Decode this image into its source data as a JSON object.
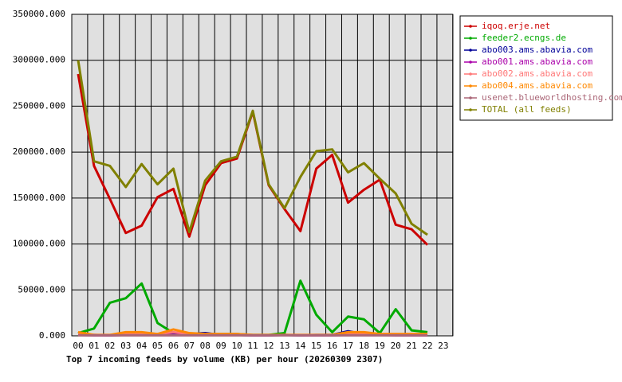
{
  "chart_data": {
    "type": "line",
    "title": "Top 7 incoming feeds by volume (KB) per hour (20260309 2307)",
    "categories": [
      "00",
      "01",
      "02",
      "03",
      "04",
      "05",
      "06",
      "07",
      "08",
      "09",
      "10",
      "11",
      "12",
      "13",
      "14",
      "15",
      "16",
      "17",
      "18",
      "19",
      "20",
      "21",
      "22",
      "23"
    ],
    "ylim": [
      0,
      350000
    ],
    "yticks": [
      {
        "value": 0,
        "label": "0.000"
      },
      {
        "value": 50000,
        "label": "50000.000"
      },
      {
        "value": 100000,
        "label": "100000.000"
      },
      {
        "value": 150000,
        "label": "150000.000"
      },
      {
        "value": 200000,
        "label": "200000.000"
      },
      {
        "value": 250000,
        "label": "250000.000"
      },
      {
        "value": 300000,
        "label": "300000.000"
      },
      {
        "value": 350000,
        "label": "350000.000"
      }
    ],
    "grid": true,
    "legend": "right",
    "series": [
      {
        "name": "iqoq.erje.net",
        "color": "#cc0000",
        "values": [
          285000,
          185000,
          149000,
          112000,
          120000,
          151000,
          160000,
          108000,
          164000,
          188000,
          193000,
          244000,
          164000,
          138000,
          114000,
          182000,
          197000,
          145000,
          159000,
          170000,
          121000,
          116000,
          99000,
          null
        ]
      },
      {
        "name": "feeder2.ecngs.de",
        "color": "#00aa00",
        "values": [
          3000,
          8000,
          36000,
          41000,
          57000,
          14000,
          3000,
          2000,
          2000,
          2000,
          2000,
          1000,
          1000,
          3000,
          60000,
          23000,
          4000,
          21000,
          18000,
          3000,
          29000,
          6000,
          4000,
          null
        ]
      },
      {
        "name": "abo003.ams.abavia.com",
        "color": "#000099",
        "values": [
          1000,
          1000,
          500,
          1000,
          1000,
          1000,
          3000,
          2000,
          3000,
          1000,
          1000,
          500,
          500,
          1000,
          500,
          1000,
          1000,
          5000,
          2000,
          1000,
          1000,
          1000,
          1000,
          null
        ]
      },
      {
        "name": "abo001.ams.abavia.com",
        "color": "#aa00aa",
        "values": [
          1000,
          500,
          500,
          1000,
          1000,
          1000,
          1000,
          1000,
          1000,
          1000,
          1000,
          500,
          500,
          1000,
          500,
          500,
          500,
          1000,
          1000,
          1000,
          500,
          500,
          500,
          null
        ]
      },
      {
        "name": "abo002.ams.abavia.com",
        "color": "#ff7777",
        "values": [
          2000,
          1000,
          1000,
          2000,
          2000,
          2000,
          4000,
          2000,
          2000,
          2000,
          2000,
          1000,
          1000,
          1000,
          1000,
          1000,
          1000,
          3000,
          3000,
          2000,
          2000,
          2000,
          2000,
          null
        ]
      },
      {
        "name": "abo004.ams.abavia.com",
        "color": "#ff8800",
        "values": [
          4000,
          1000,
          1000,
          4000,
          4000,
          2000,
          7000,
          3000,
          2000,
          2000,
          2000,
          1000,
          1000,
          1000,
          1000,
          1000,
          1000,
          4000,
          4000,
          2000,
          2000,
          2000,
          2000,
          null
        ]
      },
      {
        "name": "usenet.blueworldhosting.com",
        "color": "#aa6677",
        "values": [
          500,
          500,
          500,
          500,
          500,
          500,
          500,
          500,
          500,
          500,
          500,
          500,
          500,
          500,
          500,
          500,
          500,
          500,
          500,
          500,
          500,
          500,
          500,
          null
        ]
      },
      {
        "name": "TOTAL (all feeds)",
        "color": "#808000",
        "values": [
          300000,
          190000,
          185000,
          162000,
          187000,
          165000,
          182000,
          113000,
          169000,
          190000,
          195000,
          245000,
          165000,
          139000,
          173000,
          201000,
          203000,
          178000,
          188000,
          171000,
          155000,
          122000,
          110000,
          null
        ]
      }
    ]
  }
}
